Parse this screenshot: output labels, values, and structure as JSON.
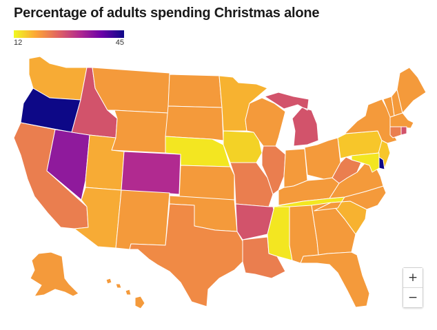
{
  "title": "Percentage of adults spending Christmas alone",
  "legend": {
    "min_label": "12",
    "max_label": "45",
    "min": 12,
    "max": 45
  },
  "colors": {
    "yellow": "#f3e621",
    "light_orange": "#f7ab35",
    "orange": "#f49a3b",
    "dark_orange": "#ea7e4f",
    "pink": "#d2536b",
    "magenta": "#b12a90",
    "purple": "#7a0fa0",
    "navy": "#0d0887",
    "border": "#ffffff"
  },
  "states": [
    {
      "id": "WA",
      "color": "#f7ab35"
    },
    {
      "id": "OR",
      "color": "#0d0887"
    },
    {
      "id": "CA",
      "color": "#ea7e4f"
    },
    {
      "id": "NV",
      "color": "#8f1a9c"
    },
    {
      "id": "ID",
      "color": "#d2536b"
    },
    {
      "id": "MT",
      "color": "#f49a3b"
    },
    {
      "id": "WY",
      "color": "#f49a3b"
    },
    {
      "id": "UT",
      "color": "#f7ab35"
    },
    {
      "id": "AZ",
      "color": "#f7ab35"
    },
    {
      "id": "CO",
      "color": "#b12a90"
    },
    {
      "id": "NM",
      "color": "#f49a3b"
    },
    {
      "id": "ND",
      "color": "#f49a3b"
    },
    {
      "id": "SD",
      "color": "#f49a3b"
    },
    {
      "id": "NE",
      "color": "#f3e621"
    },
    {
      "id": "KS",
      "color": "#f49a3b"
    },
    {
      "id": "OK",
      "color": "#f49a3b"
    },
    {
      "id": "TX",
      "color": "#f08a45"
    },
    {
      "id": "MN",
      "color": "#f7b230"
    },
    {
      "id": "IA",
      "color": "#f3d226"
    },
    {
      "id": "MO",
      "color": "#ea7e4f"
    },
    {
      "id": "AR",
      "color": "#d2536b"
    },
    {
      "id": "LA",
      "color": "#ea7e4f"
    },
    {
      "id": "WI",
      "color": "#f49a3b"
    },
    {
      "id": "IL",
      "color": "#ea7e4f"
    },
    {
      "id": "MI",
      "color": "#d2536b"
    },
    {
      "id": "IN",
      "color": "#f49a3b"
    },
    {
      "id": "OH",
      "color": "#f49a3b"
    },
    {
      "id": "KY",
      "color": "#f49a3b"
    },
    {
      "id": "TN",
      "color": "#f3e621"
    },
    {
      "id": "MS",
      "color": "#f3e621"
    },
    {
      "id": "AL",
      "color": "#f49a3b"
    },
    {
      "id": "GA",
      "color": "#f49a3b"
    },
    {
      "id": "FL",
      "color": "#f49a3b"
    },
    {
      "id": "SC",
      "color": "#f7b230"
    },
    {
      "id": "NC",
      "color": "#f49a3b"
    },
    {
      "id": "VA",
      "color": "#f49a3b"
    },
    {
      "id": "WV",
      "color": "#ea7e4f"
    },
    {
      "id": "PA",
      "color": "#f7c62a"
    },
    {
      "id": "NY",
      "color": "#f49a3b"
    },
    {
      "id": "NJ",
      "color": "#f7c62a"
    },
    {
      "id": "DE",
      "color": "#0d0887"
    },
    {
      "id": "MD",
      "color": "#f3e621"
    },
    {
      "id": "VT",
      "color": "#f49a3b"
    },
    {
      "id": "NH",
      "color": "#f49a3b"
    },
    {
      "id": "ME",
      "color": "#f49a3b"
    },
    {
      "id": "MA",
      "color": "#f49a3b"
    },
    {
      "id": "CT",
      "color": "#ea7e4f"
    },
    {
      "id": "RI",
      "color": "#d2536b"
    },
    {
      "id": "AK",
      "color": "#f49a3b"
    },
    {
      "id": "HI",
      "color": "#f49a3b"
    }
  ],
  "zoom": {
    "in_label": "+",
    "out_label": "−"
  }
}
